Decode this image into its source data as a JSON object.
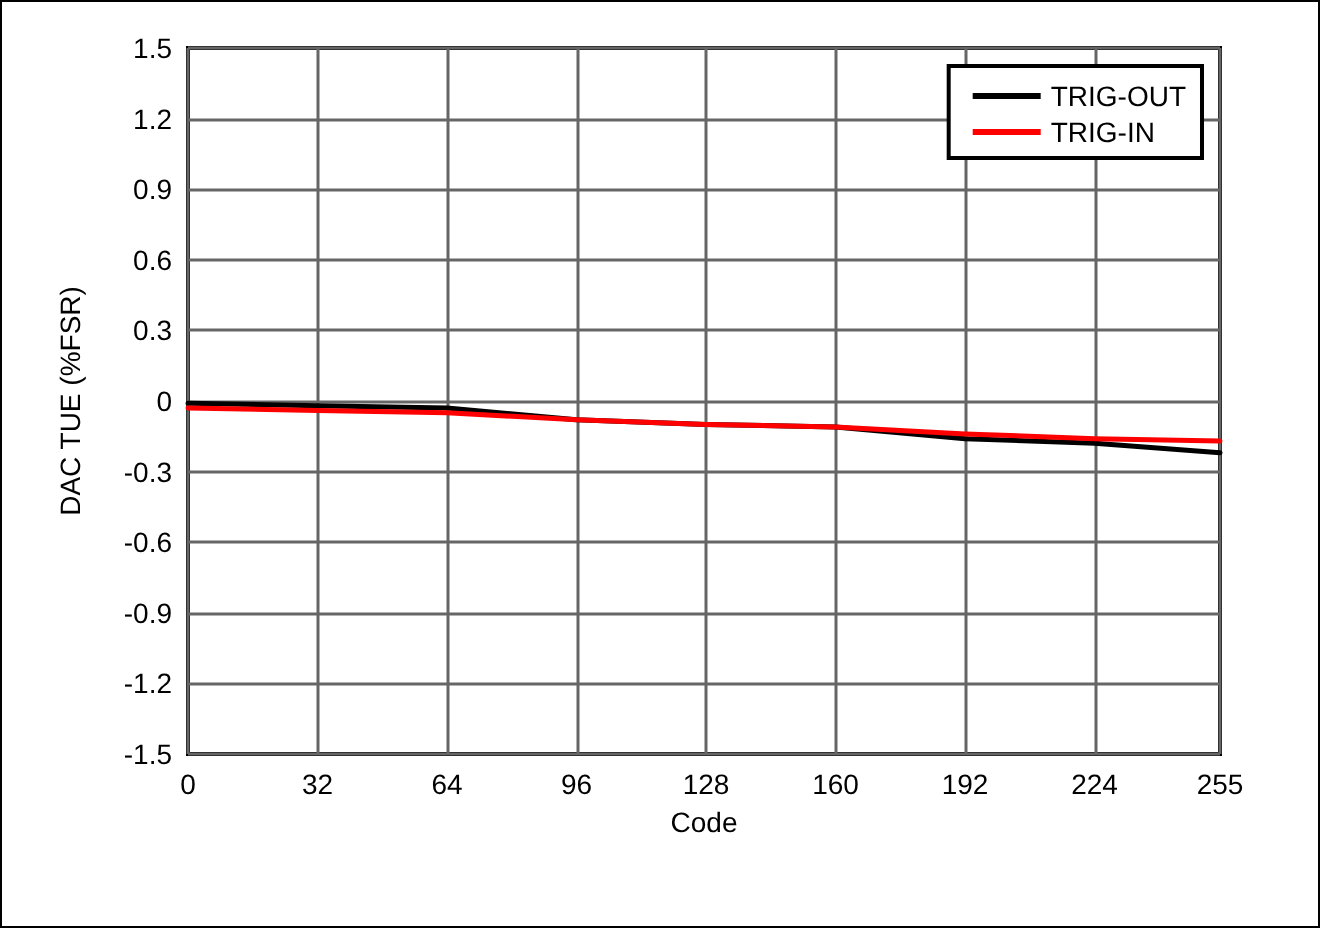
{
  "chart_data": {
    "type": "line",
    "xlabel": "Code",
    "ylabel": "DAC TUE (%FSR)",
    "xlim": [
      0,
      255
    ],
    "xticks": [
      0,
      32,
      64,
      96,
      128,
      160,
      192,
      224,
      255
    ],
    "ylim": [
      -1.5,
      1.5
    ],
    "yticks": [
      -1.5,
      -1.2,
      -0.9,
      -0.6,
      -0.3,
      0,
      0.3,
      0.6,
      0.9,
      1.2,
      1.5
    ],
    "grid": true,
    "legend": "top right",
    "marker": "none",
    "line_style": "solid",
    "series": [
      {
        "name": "TRIG-OUT",
        "color": "#000000",
        "x": [
          0,
          32,
          64,
          96,
          128,
          160,
          192,
          224,
          255
        ],
        "values": [
          -0.01,
          -0.02,
          -0.03,
          -0.08,
          -0.1,
          -0.11,
          -0.16,
          -0.18,
          -0.22
        ]
      },
      {
        "name": "TRIG-IN",
        "color": "#ff0000",
        "x": [
          0,
          32,
          64,
          96,
          128,
          160,
          192,
          224,
          255
        ],
        "values": [
          -0.03,
          -0.04,
          -0.05,
          -0.08,
          -0.1,
          -0.11,
          -0.14,
          -0.16,
          -0.17
        ]
      }
    ]
  }
}
